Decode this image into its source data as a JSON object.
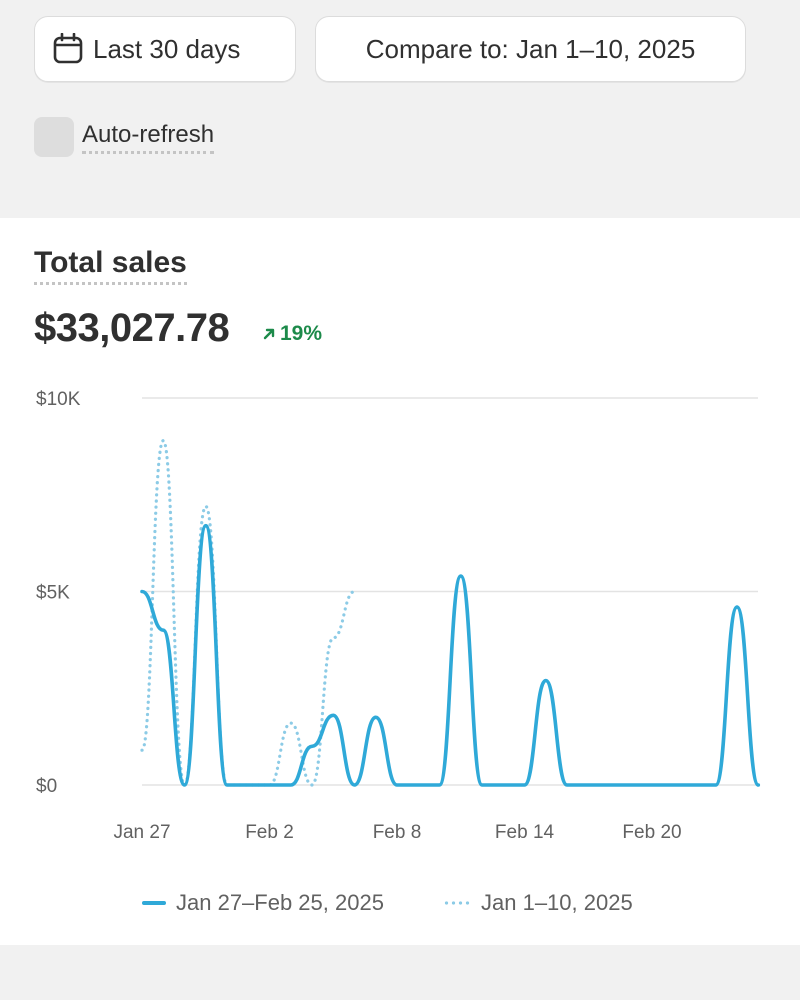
{
  "controls": {
    "date_range_label": "Last 30 days",
    "compare_label": "Compare to: Jan 1–10, 2025",
    "auto_refresh_label": "Auto-refresh",
    "auto_refresh_checked": false
  },
  "card": {
    "title": "Total sales",
    "total": "$33,027.78",
    "delta": "19%",
    "delta_color": "#1c8a4a"
  },
  "chart_data": {
    "type": "line",
    "y_ticks": [
      "$10K",
      "$5K",
      "$0"
    ],
    "y_tick_values": [
      10000,
      5000,
      0
    ],
    "ylim": [
      0,
      10000
    ],
    "x_tick_labels": [
      "Jan 27",
      "Feb 2",
      "Feb 8",
      "Feb 14",
      "Feb 20"
    ],
    "x_tick_indices": [
      0,
      6,
      12,
      18,
      24
    ],
    "x_count": 30,
    "grid": true,
    "legend_position": "bottom",
    "series": [
      {
        "name": "Jan 27–Feb 25, 2025",
        "style": "solid",
        "color": "#2fa9d8",
        "values": [
          5000,
          4000,
          0,
          6700,
          0,
          0,
          0,
          0,
          1000,
          1800,
          0,
          1750,
          0,
          0,
          0,
          5400,
          0,
          0,
          0,
          2700,
          0,
          0,
          0,
          0,
          0,
          0,
          0,
          0,
          4600,
          0
        ]
      },
      {
        "name": "Jan 1–10, 2025",
        "style": "dotted",
        "color": "#8ccbe6",
        "values": [
          900,
          8900,
          0,
          7200,
          0,
          0,
          0,
          1600,
          0,
          3800,
          5000
        ]
      }
    ]
  },
  "legend": {
    "current": "Jan 27–Feb 25, 2025",
    "previous": "Jan 1–10, 2025"
  },
  "icons": {
    "calendar": "calendar-icon",
    "trend": "arrow-up-right-icon"
  }
}
